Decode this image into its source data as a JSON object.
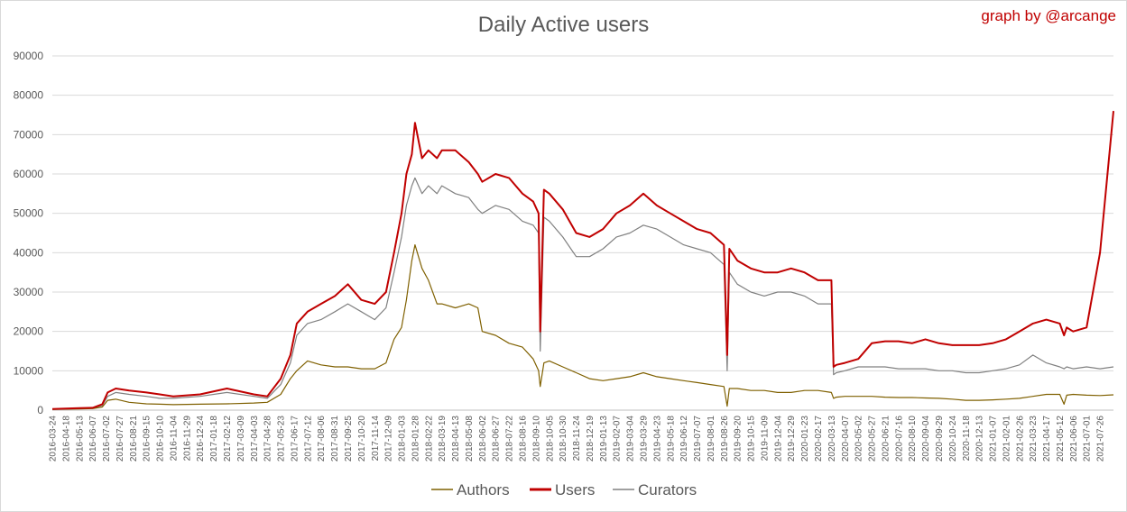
{
  "chart_data": {
    "type": "line",
    "title": "Daily Active users",
    "credit": "graph by @arcange",
    "xlabel": "",
    "ylabel": "",
    "ylim": [
      0,
      90000
    ],
    "yticks": [
      0,
      10000,
      20000,
      30000,
      40000,
      50000,
      60000,
      70000,
      80000,
      90000
    ],
    "grid": true,
    "legend_position": "bottom",
    "x_start": "2016-03-24",
    "x_end": "2021-08-20",
    "x_tick_labels": [
      "2016-03-24",
      "2016-04-18",
      "2016-05-13",
      "2016-06-07",
      "2016-07-02",
      "2016-07-27",
      "2016-08-21",
      "2016-09-15",
      "2016-10-10",
      "2016-11-04",
      "2016-11-29",
      "2016-12-24",
      "2017-01-18",
      "2017-02-12",
      "2017-03-09",
      "2017-04-03",
      "2017-04-28",
      "2017-05-23",
      "2017-06-17",
      "2017-07-12",
      "2017-08-06",
      "2017-08-31",
      "2017-09-25",
      "2017-10-20",
      "2017-11-14",
      "2017-12-09",
      "2018-01-03",
      "2018-01-28",
      "2018-02-22",
      "2018-03-19",
      "2018-04-13",
      "2018-05-08",
      "2018-06-02",
      "2018-06-27",
      "2018-07-22",
      "2018-08-16",
      "2018-09-10",
      "2018-10-05",
      "2018-10-30",
      "2018-11-24",
      "2018-12-19",
      "2019-01-13",
      "2019-02-07",
      "2019-03-04",
      "2019-03-29",
      "2019-04-23",
      "2019-05-18",
      "2019-06-12",
      "2019-07-07",
      "2019-08-01",
      "2019-08-26",
      "2019-09-20",
      "2019-10-15",
      "2019-11-09",
      "2019-12-04",
      "2019-12-29",
      "2020-01-23",
      "2020-02-17",
      "2020-03-13",
      "2020-04-07",
      "2020-05-02",
      "2020-05-27",
      "2020-06-21",
      "2020-07-16",
      "2020-08-10",
      "2020-09-04",
      "2020-09-29",
      "2020-10-24",
      "2020-11-18",
      "2020-12-13",
      "2021-01-07",
      "2021-02-01",
      "2021-02-26",
      "2021-03-23",
      "2021-04-17",
      "2021-05-12",
      "2021-06-06",
      "2021-07-01",
      "2021-07-26"
    ],
    "series": [
      {
        "name": "Authors",
        "color": "#7f6000",
        "x": [
          "2016-03-24",
          "2016-04-18",
          "2016-05-13",
          "2016-06-07",
          "2016-06-25",
          "2016-07-05",
          "2016-07-20",
          "2016-08-14",
          "2016-09-15",
          "2016-10-10",
          "2016-11-04",
          "2016-12-24",
          "2017-02-12",
          "2017-04-03",
          "2017-04-28",
          "2017-05-23",
          "2017-06-10",
          "2017-06-22",
          "2017-07-12",
          "2017-08-06",
          "2017-09-01",
          "2017-09-25",
          "2017-10-20",
          "2017-11-14",
          "2017-12-05",
          "2017-12-20",
          "2018-01-03",
          "2018-01-12",
          "2018-01-22",
          "2018-01-28",
          "2018-02-10",
          "2018-02-22",
          "2018-03-10",
          "2018-03-19",
          "2018-04-13",
          "2018-05-08",
          "2018-05-25",
          "2018-06-02",
          "2018-06-27",
          "2018-07-22",
          "2018-08-16",
          "2018-09-05",
          "2018-09-15",
          "2018-09-18",
          "2018-09-25",
          "2018-10-05",
          "2018-10-30",
          "2018-11-24",
          "2018-12-19",
          "2019-01-13",
          "2019-02-07",
          "2019-03-04",
          "2019-03-29",
          "2019-04-23",
          "2019-05-18",
          "2019-06-12",
          "2019-07-07",
          "2019-08-01",
          "2019-08-26",
          "2019-09-01",
          "2019-09-05",
          "2019-09-20",
          "2019-10-15",
          "2019-11-09",
          "2019-12-04",
          "2019-12-29",
          "2020-01-23",
          "2020-02-17",
          "2020-03-13",
          "2020-03-17",
          "2020-03-22",
          "2020-04-07",
          "2020-05-02",
          "2020-05-27",
          "2020-06-21",
          "2020-07-16",
          "2020-08-10",
          "2020-09-04",
          "2020-09-29",
          "2020-10-24",
          "2020-11-18",
          "2020-12-13",
          "2021-01-07",
          "2021-02-01",
          "2021-02-26",
          "2021-03-23",
          "2021-04-17",
          "2021-05-12",
          "2021-05-20",
          "2021-05-25",
          "2021-06-06",
          "2021-07-01",
          "2021-07-26",
          "2021-08-20"
        ],
        "values": [
          200,
          250,
          300,
          400,
          800,
          2500,
          2800,
          2000,
          1600,
          1500,
          1400,
          1500,
          1600,
          1800,
          2000,
          4000,
          8000,
          10000,
          12500,
          11500,
          11000,
          11000,
          10500,
          10500,
          12000,
          18000,
          21000,
          28000,
          38000,
          42000,
          36000,
          33000,
          27000,
          27000,
          26000,
          27000,
          26000,
          20000,
          19000,
          17000,
          16000,
          13000,
          10000,
          6000,
          12000,
          12500,
          11000,
          9500,
          8000,
          7500,
          8000,
          8500,
          9500,
          8500,
          8000,
          7500,
          7000,
          6500,
          6000,
          1000,
          5500,
          5500,
          5000,
          5000,
          4500,
          4500,
          5000,
          5000,
          4500,
          3000,
          3300,
          3500,
          3500,
          3500,
          3300,
          3200,
          3200,
          3100,
          3000,
          2800,
          2500,
          2500,
          2600,
          2800,
          3000,
          3500,
          4000,
          4000,
          1500,
          3800,
          4000,
          3800,
          3700,
          3900
        ]
      },
      {
        "name": "Users",
        "color": "#c00000",
        "x": [
          "2016-03-24",
          "2016-04-18",
          "2016-05-13",
          "2016-06-07",
          "2016-06-25",
          "2016-07-05",
          "2016-07-20",
          "2016-08-14",
          "2016-09-15",
          "2016-10-10",
          "2016-11-04",
          "2016-12-24",
          "2017-02-12",
          "2017-04-03",
          "2017-04-28",
          "2017-05-23",
          "2017-06-10",
          "2017-06-22",
          "2017-07-12",
          "2017-08-06",
          "2017-09-01",
          "2017-09-25",
          "2017-10-20",
          "2017-11-14",
          "2017-12-05",
          "2017-12-20",
          "2018-01-03",
          "2018-01-12",
          "2018-01-22",
          "2018-01-28",
          "2018-02-10",
          "2018-02-22",
          "2018-03-10",
          "2018-03-19",
          "2018-04-13",
          "2018-05-08",
          "2018-05-25",
          "2018-06-02",
          "2018-06-27",
          "2018-07-22",
          "2018-08-16",
          "2018-09-05",
          "2018-09-15",
          "2018-09-18",
          "2018-09-25",
          "2018-10-05",
          "2018-10-30",
          "2018-11-24",
          "2018-12-19",
          "2019-01-13",
          "2019-02-07",
          "2019-03-04",
          "2019-03-29",
          "2019-04-23",
          "2019-05-18",
          "2019-06-12",
          "2019-07-07",
          "2019-08-01",
          "2019-08-26",
          "2019-09-01",
          "2019-09-05",
          "2019-09-20",
          "2019-10-15",
          "2019-11-09",
          "2019-12-04",
          "2019-12-29",
          "2020-01-23",
          "2020-02-17",
          "2020-03-13",
          "2020-03-17",
          "2020-03-22",
          "2020-04-07",
          "2020-05-02",
          "2020-05-27",
          "2020-06-21",
          "2020-07-16",
          "2020-08-10",
          "2020-09-04",
          "2020-09-29",
          "2020-10-24",
          "2020-11-18",
          "2020-12-13",
          "2021-01-07",
          "2021-02-01",
          "2021-02-26",
          "2021-03-23",
          "2021-04-17",
          "2021-05-12",
          "2021-05-20",
          "2021-05-25",
          "2021-06-06",
          "2021-07-01",
          "2021-07-26",
          "2021-08-20"
        ],
        "values": [
          300,
          400,
          500,
          600,
          1500,
          4500,
          5500,
          5000,
          4500,
          4000,
          3500,
          4000,
          5500,
          4000,
          3500,
          8000,
          14000,
          22000,
          25000,
          27000,
          29000,
          32000,
          28000,
          27000,
          30000,
          40000,
          50000,
          60000,
          65000,
          73000,
          64000,
          66000,
          64000,
          66000,
          66000,
          63000,
          60000,
          58000,
          60000,
          59000,
          55000,
          53000,
          50000,
          20000,
          56000,
          55000,
          51000,
          45000,
          44000,
          46000,
          50000,
          52000,
          55000,
          52000,
          50000,
          48000,
          46000,
          45000,
          42000,
          14000,
          41000,
          38000,
          36000,
          35000,
          35000,
          36000,
          35000,
          33000,
          33000,
          11000,
          11500,
          12000,
          13000,
          17000,
          17500,
          17500,
          17000,
          18000,
          17000,
          16500,
          16500,
          16500,
          17000,
          18000,
          20000,
          22000,
          23000,
          22000,
          19000,
          21000,
          20000,
          21000,
          40000,
          76000
        ]
      },
      {
        "name": "Curators",
        "color": "#808080",
        "x": [
          "2016-03-24",
          "2016-04-18",
          "2016-05-13",
          "2016-06-07",
          "2016-06-25",
          "2016-07-05",
          "2016-07-20",
          "2016-08-14",
          "2016-09-15",
          "2016-10-10",
          "2016-11-04",
          "2016-12-24",
          "2017-02-12",
          "2017-04-03",
          "2017-04-28",
          "2017-05-23",
          "2017-06-10",
          "2017-06-22",
          "2017-07-12",
          "2017-08-06",
          "2017-09-01",
          "2017-09-25",
          "2017-10-20",
          "2017-11-14",
          "2017-12-05",
          "2017-12-20",
          "2018-01-03",
          "2018-01-12",
          "2018-01-22",
          "2018-01-28",
          "2018-02-10",
          "2018-02-22",
          "2018-03-10",
          "2018-03-19",
          "2018-04-13",
          "2018-05-08",
          "2018-05-25",
          "2018-06-02",
          "2018-06-27",
          "2018-07-22",
          "2018-08-16",
          "2018-09-05",
          "2018-09-15",
          "2018-09-18",
          "2018-09-25",
          "2018-10-05",
          "2018-10-30",
          "2018-11-24",
          "2018-12-19",
          "2019-01-13",
          "2019-02-07",
          "2019-03-04",
          "2019-03-29",
          "2019-04-23",
          "2019-05-18",
          "2019-06-12",
          "2019-07-07",
          "2019-08-01",
          "2019-08-26",
          "2019-09-01",
          "2019-09-05",
          "2019-09-20",
          "2019-10-15",
          "2019-11-09",
          "2019-12-04",
          "2019-12-29",
          "2020-01-23",
          "2020-02-17",
          "2020-03-13",
          "2020-03-17",
          "2020-03-22",
          "2020-04-07",
          "2020-05-02",
          "2020-05-27",
          "2020-06-21",
          "2020-07-16",
          "2020-08-10",
          "2020-09-04",
          "2020-09-29",
          "2020-10-24",
          "2020-11-18",
          "2020-12-13",
          "2021-01-07",
          "2021-02-01",
          "2021-02-26",
          "2021-03-23",
          "2021-04-17",
          "2021-05-12",
          "2021-05-20",
          "2021-05-25",
          "2021-06-06",
          "2021-07-01",
          "2021-07-26",
          "2021-08-20"
        ],
        "values": [
          250,
          350,
          400,
          500,
          1200,
          3500,
          4500,
          4000,
          3500,
          3000,
          3000,
          3500,
          4500,
          3500,
          3000,
          6500,
          12000,
          19000,
          22000,
          23000,
          25000,
          27000,
          25000,
          23000,
          26000,
          35000,
          44000,
          52000,
          57000,
          59000,
          55000,
          57000,
          55000,
          57000,
          55000,
          54000,
          51000,
          50000,
          52000,
          51000,
          48000,
          47000,
          45000,
          15000,
          49000,
          48000,
          44000,
          39000,
          39000,
          41000,
          44000,
          45000,
          47000,
          46000,
          44000,
          42000,
          41000,
          40000,
          37000,
          10000,
          35000,
          32000,
          30000,
          29000,
          30000,
          30000,
          29000,
          27000,
          27000,
          9000,
          9500,
          10000,
          11000,
          11000,
          11000,
          10500,
          10500,
          10500,
          10000,
          10000,
          9500,
          9500,
          10000,
          10500,
          11500,
          14000,
          12000,
          11000,
          10500,
          11000,
          10500,
          11000,
          10500,
          11000
        ]
      }
    ]
  }
}
